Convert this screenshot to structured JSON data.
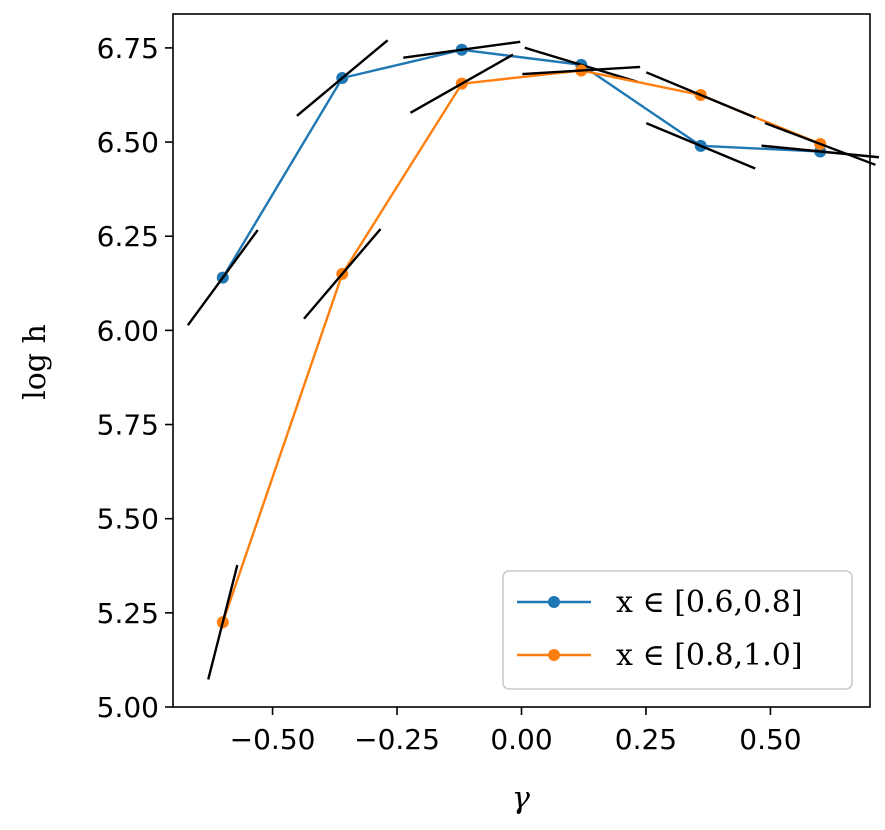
{
  "chart_data": {
    "type": "line",
    "xlabel": "γ",
    "ylabel": "log h",
    "xlim": [
      -0.7,
      0.7
    ],
    "ylim": [
      5.0,
      6.84
    ],
    "xticks": [
      -0.5,
      -0.25,
      0.0,
      0.25,
      0.5
    ],
    "xtick_labels": [
      "−0.50",
      "−0.25",
      "0.00",
      "0.25",
      "0.50"
    ],
    "yticks": [
      5.0,
      5.25,
      5.5,
      5.75,
      6.0,
      6.25,
      6.5,
      6.75
    ],
    "ytick_labels": [
      "5.00",
      "5.25",
      "5.50",
      "5.75",
      "6.00",
      "6.25",
      "6.50",
      "6.75"
    ],
    "grid": false,
    "legend_position": "bottom-right",
    "series": [
      {
        "name": "x ∈ [0.6,0.8]",
        "color": "#1f77b4",
        "x": [
          -0.6,
          -0.36,
          -0.12,
          0.12,
          0.36,
          0.6
        ],
        "y": [
          6.14,
          6.67,
          6.745,
          6.705,
          6.49,
          6.475
        ],
        "slopes": [
          1.8,
          1.1,
          0.18,
          -0.4,
          -0.55,
          -0.13
        ]
      },
      {
        "name": "x ∈ [0.8,1.0]",
        "color": "#ff7f0e",
        "x": [
          -0.6,
          -0.36,
          -0.12,
          0.12,
          0.36,
          0.6
        ],
        "y": [
          5.225,
          6.15,
          6.655,
          6.69,
          6.625,
          6.495
        ],
        "slopes": [
          5.2,
          1.55,
          0.75,
          0.08,
          -0.55,
          -0.5
        ]
      }
    ]
  }
}
